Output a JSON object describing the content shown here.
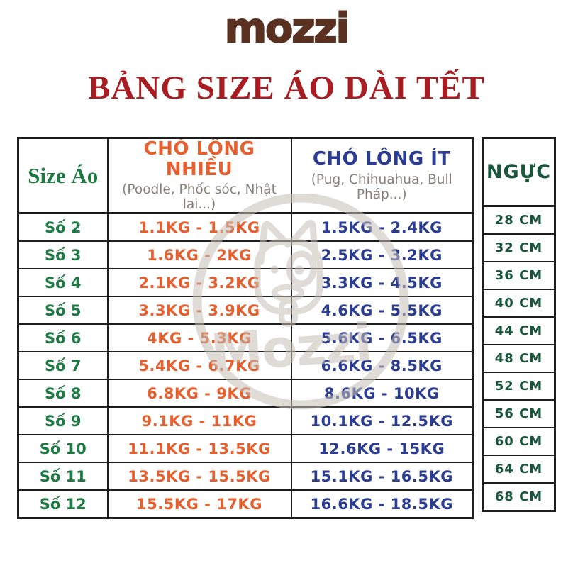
{
  "brand": {
    "logo": "mozzi"
  },
  "title": "BẢNG SIZE ÁO DÀI TẾT",
  "table": {
    "headers": {
      "size": "Size Áo",
      "fluffy": "CHÓ LÔNG NHIỀU",
      "fluffy_sub": "(Poodle, Phốc sóc, Nhật lai...)",
      "short": "CHÓ LÔNG ÍT",
      "short_sub": "(Pug, Chihuahua, Bull Pháp...)",
      "chest": "NGỰC"
    },
    "rows": [
      {
        "size": "Số 2",
        "fluffy": "1.1KG - 1.5KG",
        "short": "1.5KG - 2.4KG",
        "chest": "28 CM"
      },
      {
        "size": "Số 3",
        "fluffy": "1.6KG - 2KG",
        "short": "2.5KG - 3.2KG",
        "chest": "32 CM"
      },
      {
        "size": "Số 4",
        "fluffy": "2.1KG - 3.2KG",
        "short": "3.3KG - 4.5KG",
        "chest": "36 CM"
      },
      {
        "size": "Số 5",
        "fluffy": "3.3KG - 3.9KG",
        "short": "4.6KG - 5.5KG",
        "chest": "40 CM"
      },
      {
        "size": "Số 6",
        "fluffy": "4KG - 5.3KG",
        "short": "5.6KG - 6.5KG",
        "chest": "44 CM"
      },
      {
        "size": "Số 7",
        "fluffy": "5.4KG - 6.7KG",
        "short": "6.6KG - 8.5KG",
        "chest": "48 CM"
      },
      {
        "size": "Số 8",
        "fluffy": "6.8KG - 9KG",
        "short": "8.6KG - 10KG",
        "chest": "52 CM"
      },
      {
        "size": "Số 9",
        "fluffy": "9.1KG - 11KG",
        "short": "10.1KG - 12.5KG",
        "chest": "56 CM"
      },
      {
        "size": "Số 10",
        "fluffy": "11.1KG - 13.5KG",
        "short": "12.6KG - 15KG",
        "chest": "60 CM"
      },
      {
        "size": "Số 11",
        "fluffy": "13.5KG - 15.5KG",
        "short": "15.1KG - 16.5KG",
        "chest": "64 CM"
      },
      {
        "size": "Số 12",
        "fluffy": "15.5KG - 17KG",
        "short": "16.6KG - 18.5KG",
        "chest": "68 CM"
      }
    ]
  },
  "watermark": {
    "text": "Mozzi",
    "icon": "dog-face-logo"
  },
  "colors": {
    "logo-brown": "#5a3121",
    "title-red": "#a81d21",
    "size-green": "#1d7a42",
    "fluffy-orange": "#e6602f",
    "short-blue": "#2b3d93",
    "chest-green": "#17563a",
    "subtitle-gray": "#86807a",
    "border-dark": "#1e1e1e",
    "watermark-gray": "#c6beb7"
  }
}
